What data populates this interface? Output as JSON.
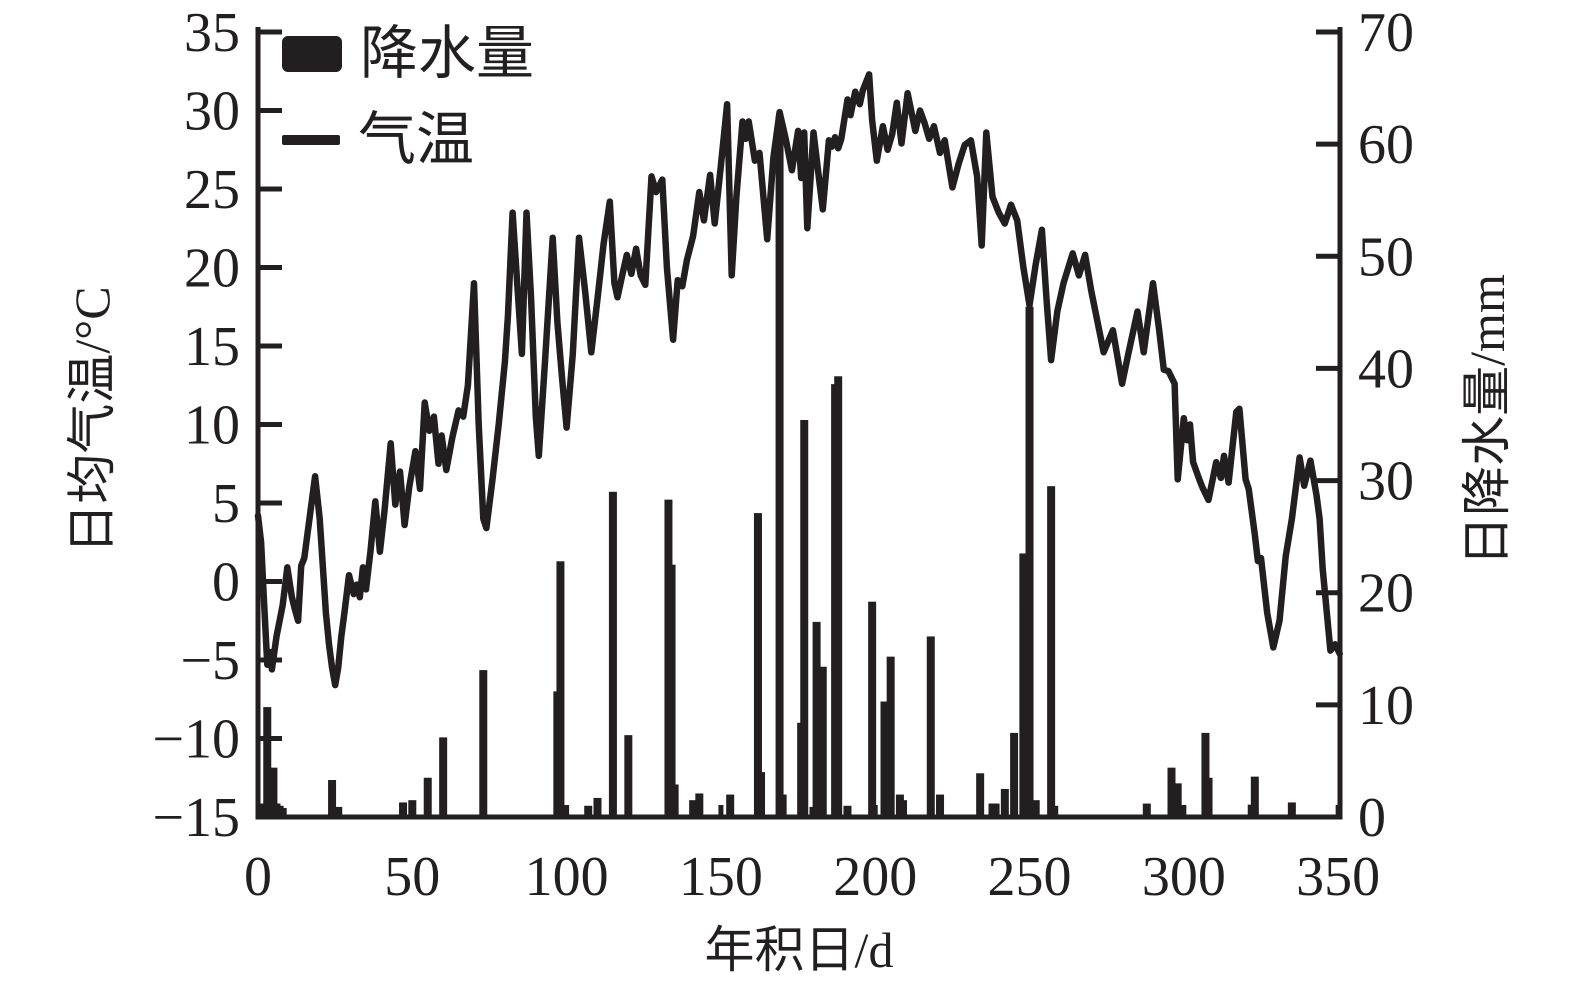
{
  "figure": {
    "background": "#ffffff",
    "ink_color": "#231f20"
  },
  "legend": {
    "items": [
      {
        "label": "降水量",
        "swatch": "bar-swatch"
      },
      {
        "label": "气温",
        "swatch": "line-swatch"
      }
    ]
  },
  "axes": {
    "x": {
      "title": "年积日/d",
      "ticks": [
        0,
        50,
        100,
        150,
        200,
        250,
        300,
        350
      ],
      "range": [
        0,
        350.6
      ]
    },
    "y_left": {
      "title": "日均气温/°C",
      "ticks": [
        35,
        30,
        25,
        20,
        15,
        10,
        5,
        0,
        -5,
        -10,
        -15
      ],
      "range": [
        -15,
        35
      ]
    },
    "y_right": {
      "title": "日降水量/mm",
      "ticks": [
        70,
        60,
        50,
        40,
        30,
        20,
        10,
        0
      ],
      "range": [
        0,
        70
      ]
    }
  },
  "chart_data": {
    "type": "line+bar",
    "grid": false,
    "legend_position": "top-left-inside",
    "series": [
      {
        "name": "降水量",
        "type": "bar",
        "axis": "right",
        "unit": "mm",
        "color": "#231f20",
        "points": [
          [
            1,
            1.2
          ],
          [
            2,
            1.2
          ],
          [
            3,
            9.8
          ],
          [
            4,
            1.5
          ],
          [
            5,
            4.4
          ],
          [
            6,
            1.2
          ],
          [
            7,
            1.0
          ],
          [
            8,
            0.8
          ],
          [
            24,
            3.3
          ],
          [
            26,
            0.9
          ],
          [
            47,
            1.3
          ],
          [
            50,
            1.5
          ],
          [
            55,
            3.5
          ],
          [
            60,
            7.1
          ],
          [
            73,
            13.1
          ],
          [
            97,
            11.2
          ],
          [
            98,
            22.8
          ],
          [
            99,
            1.0
          ],
          [
            107,
            1.0
          ],
          [
            110,
            1.7
          ],
          [
            115,
            29.0
          ],
          [
            120,
            7.3
          ],
          [
            133,
            28.3
          ],
          [
            134,
            22.5
          ],
          [
            135,
            2.9
          ],
          [
            141,
            1.5
          ],
          [
            143,
            2.1
          ],
          [
            153,
            2.0
          ],
          [
            162,
            27.1
          ],
          [
            163,
            4.0
          ],
          [
            169,
            62.5
          ],
          [
            170,
            2.0
          ],
          [
            176,
            8.4
          ],
          [
            177,
            35.4
          ],
          [
            180,
            0.9
          ],
          [
            181,
            17.4
          ],
          [
            183,
            13.4
          ],
          [
            187,
            38.6
          ],
          [
            188,
            39.3
          ],
          [
            191,
            1.0
          ],
          [
            199,
            19.2
          ],
          [
            203,
            10.3
          ],
          [
            205,
            14.3
          ],
          [
            208,
            2.0
          ],
          [
            209,
            1.5
          ],
          [
            218,
            16.1
          ],
          [
            221,
            2.0
          ],
          [
            234,
            3.9
          ],
          [
            238,
            1.2
          ],
          [
            239,
            1.2
          ],
          [
            242,
            2.5
          ],
          [
            245,
            7.5
          ],
          [
            248,
            23.5
          ],
          [
            249,
            18.5
          ],
          [
            250,
            45.5
          ],
          [
            252,
            1.5
          ],
          [
            257,
            29.5
          ],
          [
            258,
            1.0
          ],
          [
            288,
            1.2
          ],
          [
            296,
            4.4
          ],
          [
            297,
            2.4
          ],
          [
            298,
            3.0
          ],
          [
            307,
            7.5
          ],
          [
            308,
            3.5
          ],
          [
            322,
            1.1
          ],
          [
            323,
            3.6
          ],
          [
            335,
            1.3
          ]
        ]
      },
      {
        "name": "气温",
        "type": "line",
        "axis": "left",
        "unit": "°C",
        "color": "#231f20",
        "points": [
          [
            0,
            4.2
          ],
          [
            1,
            2.5
          ],
          [
            2,
            -1.5
          ],
          [
            3,
            -5.3
          ],
          [
            4,
            -4.5
          ],
          [
            4.5,
            -5.6
          ],
          [
            6,
            -3.5
          ],
          [
            8,
            -1.5
          ],
          [
            9.5,
            0.9
          ],
          [
            11,
            -1.0
          ],
          [
            12,
            -1.8
          ],
          [
            13,
            -2.5
          ],
          [
            14,
            1.0
          ],
          [
            15,
            1.5
          ],
          [
            16,
            3.0
          ],
          [
            17,
            4.5
          ],
          [
            18.5,
            6.7
          ],
          [
            20,
            4.0
          ],
          [
            21,
            1.0
          ],
          [
            22,
            -2.0
          ],
          [
            23,
            -4.0
          ],
          [
            24,
            -5.5
          ],
          [
            25,
            -6.6
          ],
          [
            26,
            -5.5
          ],
          [
            27,
            -3.5
          ],
          [
            28,
            -2.0
          ],
          [
            29.5,
            0.4
          ],
          [
            31,
            -0.8
          ],
          [
            32,
            -0.2
          ],
          [
            33,
            -1.0
          ],
          [
            34,
            0.9
          ],
          [
            35,
            -0.5
          ],
          [
            36.5,
            2.0
          ],
          [
            38,
            5.1
          ],
          [
            39.5,
            1.9
          ],
          [
            41,
            4.5
          ],
          [
            43,
            8.8
          ],
          [
            44.5,
            4.9
          ],
          [
            46,
            7.0
          ],
          [
            47.5,
            3.6
          ],
          [
            49,
            6.0
          ],
          [
            51,
            8.3
          ],
          [
            52.5,
            5.9
          ],
          [
            54,
            11.4
          ],
          [
            55.5,
            9.6
          ],
          [
            57,
            10.5
          ],
          [
            58.5,
            7.5
          ],
          [
            59.5,
            9.3
          ],
          [
            61,
            7.1
          ],
          [
            63,
            9.2
          ],
          [
            65,
            10.9
          ],
          [
            66.5,
            10.5
          ],
          [
            68,
            12.5
          ],
          [
            70,
            19.0
          ],
          [
            71.5,
            10.0
          ],
          [
            73,
            4.0
          ],
          [
            74,
            3.4
          ],
          [
            76,
            6.5
          ],
          [
            78,
            10.0
          ],
          [
            80,
            14.0
          ],
          [
            81,
            17.0
          ],
          [
            82.5,
            23.5
          ],
          [
            84,
            19.0
          ],
          [
            85.5,
            14.5
          ],
          [
            87,
            23.5
          ],
          [
            88.5,
            18.0
          ],
          [
            90,
            10.5
          ],
          [
            91,
            8.0
          ],
          [
            93,
            14.0
          ],
          [
            95.5,
            21.9
          ],
          [
            97,
            16.5
          ],
          [
            98.5,
            13.0
          ],
          [
            100,
            9.8
          ],
          [
            102,
            14.5
          ],
          [
            104,
            21.9
          ],
          [
            106,
            18.5
          ],
          [
            108,
            14.6
          ],
          [
            110,
            18.0
          ],
          [
            112,
            21.5
          ],
          [
            114,
            24.2
          ],
          [
            115.5,
            19.0
          ],
          [
            116.5,
            18.1
          ],
          [
            118,
            19.5
          ],
          [
            119.5,
            20.8
          ],
          [
            121,
            19.6
          ],
          [
            122.5,
            21.2
          ],
          [
            124,
            19.5
          ],
          [
            125.5,
            18.9
          ],
          [
            127.5,
            25.8
          ],
          [
            129,
            24.8
          ],
          [
            131,
            25.6
          ],
          [
            132.5,
            20.0
          ],
          [
            134.5,
            15.4
          ],
          [
            136,
            19.2
          ],
          [
            137.5,
            18.8
          ],
          [
            139,
            20.5
          ],
          [
            141,
            22.0
          ],
          [
            143,
            24.8
          ],
          [
            144.5,
            23.0
          ],
          [
            146.5,
            25.9
          ],
          [
            148,
            22.8
          ],
          [
            150,
            26.5
          ],
          [
            152,
            30.4
          ],
          [
            153.5,
            19.5
          ],
          [
            155,
            24.5
          ],
          [
            157,
            29.3
          ],
          [
            158,
            28.2
          ],
          [
            159,
            29.3
          ],
          [
            161,
            26.8
          ],
          [
            162.5,
            27.3
          ],
          [
            165,
            21.8
          ],
          [
            167,
            27.0
          ],
          [
            169,
            29.9
          ],
          [
            171,
            28.2
          ],
          [
            173,
            26.2
          ],
          [
            175,
            28.7
          ],
          [
            176,
            25.7
          ],
          [
            177,
            28.6
          ],
          [
            178,
            22.5
          ],
          [
            180,
            28.6
          ],
          [
            182,
            25.3
          ],
          [
            183,
            23.7
          ],
          [
            185,
            28.1
          ],
          [
            186,
            27.7
          ],
          [
            187,
            28.3
          ],
          [
            188,
            27.6
          ],
          [
            189,
            28.2
          ],
          [
            191,
            30.7
          ],
          [
            192,
            29.7
          ],
          [
            193.5,
            31.2
          ],
          [
            195,
            30.4
          ],
          [
            196,
            31.3
          ],
          [
            198,
            32.3
          ],
          [
            199,
            29.4
          ],
          [
            200.5,
            26.8
          ],
          [
            202.5,
            29.0
          ],
          [
            204,
            27.5
          ],
          [
            205.5,
            28.5
          ],
          [
            207,
            30.5
          ],
          [
            208.5,
            27.9
          ],
          [
            210.5,
            31.1
          ],
          [
            213,
            28.7
          ],
          [
            214.5,
            30.0
          ],
          [
            216,
            29.2
          ],
          [
            217.5,
            28.2
          ],
          [
            219,
            29.0
          ],
          [
            221,
            27.3
          ],
          [
            222.5,
            28.1
          ],
          [
            225,
            25.1
          ],
          [
            227,
            26.6
          ],
          [
            229,
            27.8
          ],
          [
            231,
            28.1
          ],
          [
            233,
            25.8
          ],
          [
            234.5,
            21.4
          ],
          [
            236,
            28.6
          ],
          [
            238,
            24.5
          ],
          [
            240,
            23.5
          ],
          [
            242,
            22.8
          ],
          [
            244,
            24.0
          ],
          [
            246,
            23.0
          ],
          [
            248,
            20.0
          ],
          [
            250,
            17.6
          ],
          [
            252,
            20.2
          ],
          [
            254,
            22.4
          ],
          [
            255.5,
            18.0
          ],
          [
            257,
            14.1
          ],
          [
            259,
            17.2
          ],
          [
            261,
            19.0
          ],
          [
            264,
            20.9
          ],
          [
            266,
            19.5
          ],
          [
            268,
            20.8
          ],
          [
            270,
            18.5
          ],
          [
            273,
            15.6
          ],
          [
            274,
            14.6
          ],
          [
            277,
            16.0
          ],
          [
            280,
            12.6
          ],
          [
            282,
            14.5
          ],
          [
            285,
            17.2
          ],
          [
            287,
            14.6
          ],
          [
            290,
            19.0
          ],
          [
            292,
            16.0
          ],
          [
            293.5,
            13.5
          ],
          [
            295,
            13.4
          ],
          [
            297,
            12.6
          ],
          [
            298,
            6.5
          ],
          [
            300,
            10.4
          ],
          [
            301,
            9.0
          ],
          [
            302,
            10.0
          ],
          [
            303,
            7.6
          ],
          [
            305,
            6.5
          ],
          [
            306,
            6.0
          ],
          [
            308,
            5.2
          ],
          [
            310.5,
            7.6
          ],
          [
            312,
            6.6
          ],
          [
            313,
            8.0
          ],
          [
            314.5,
            6.3
          ],
          [
            317,
            10.8
          ],
          [
            318,
            11.0
          ],
          [
            320,
            6.5
          ],
          [
            321,
            5.9
          ],
          [
            323,
            3.0
          ],
          [
            324,
            1.3
          ],
          [
            325,
            1.5
          ],
          [
            327,
            -2.0
          ],
          [
            329,
            -4.2
          ],
          [
            331,
            -2.5
          ],
          [
            333,
            1.6
          ],
          [
            335,
            4.0
          ],
          [
            337.5,
            7.9
          ],
          [
            339,
            6.1
          ],
          [
            341,
            7.7
          ],
          [
            343,
            5.5
          ],
          [
            344,
            4.0
          ],
          [
            345,
            0.8
          ],
          [
            347.5,
            -4.4
          ],
          [
            349,
            -4.0
          ],
          [
            350.5,
            -4.6
          ]
        ]
      }
    ]
  }
}
